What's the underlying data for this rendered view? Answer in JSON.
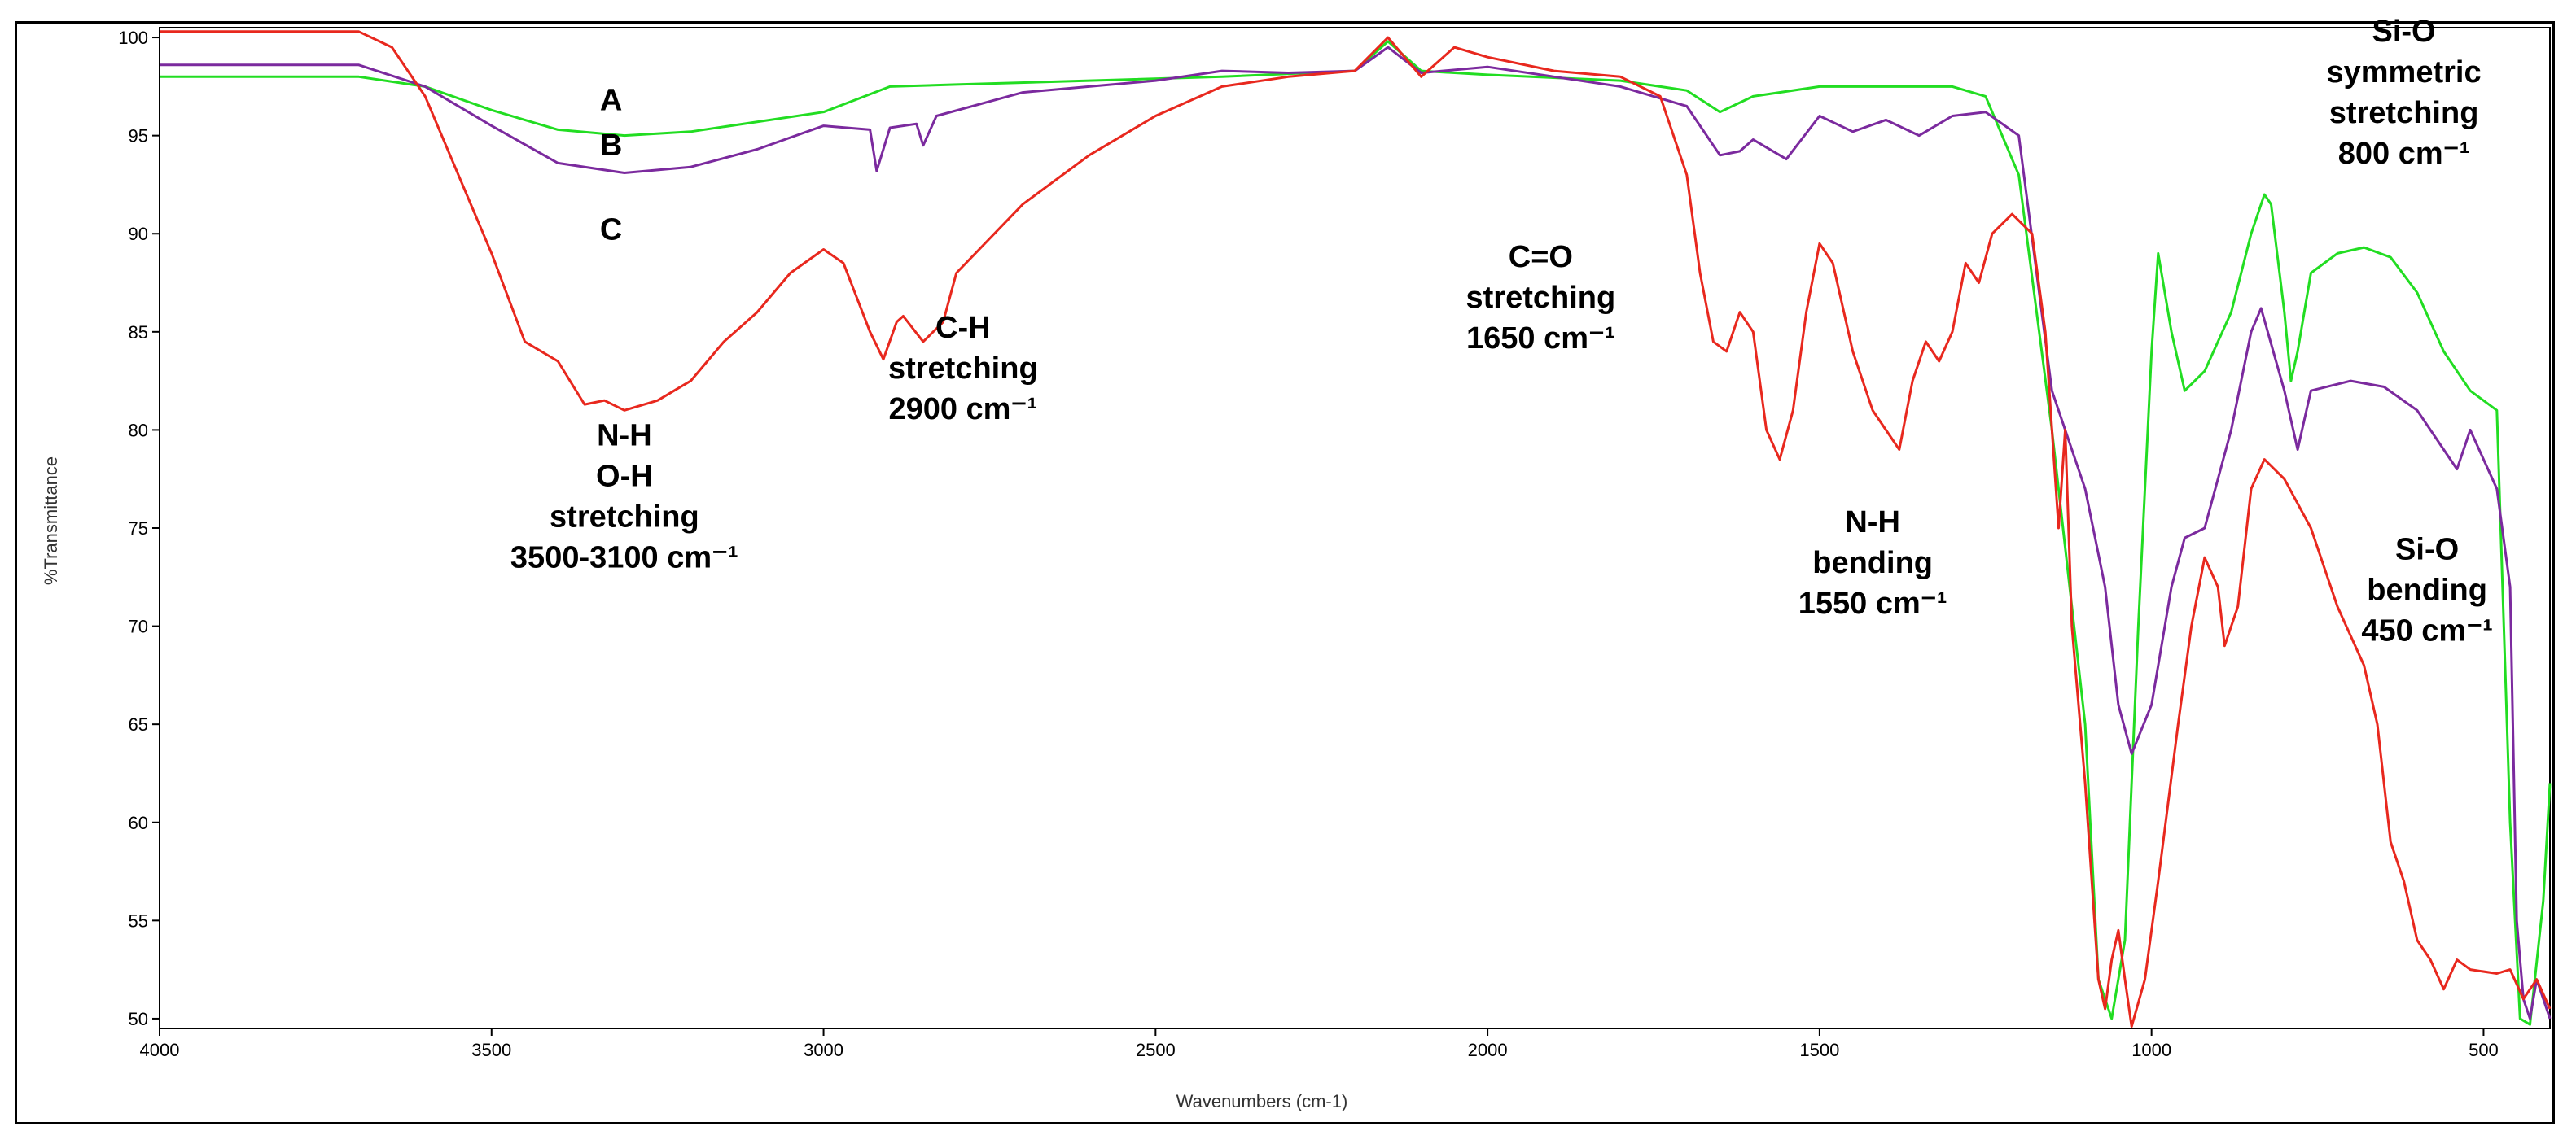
{
  "chart_data": {
    "type": "line",
    "title": "",
    "xlabel": "Wavenumbers (cm-1)",
    "ylabel": "%Transmittance",
    "xlim": [
      4000,
      400
    ],
    "ylim": [
      49.5,
      100.5
    ],
    "x_reversed": true,
    "xticks": [
      4000,
      3500,
      3000,
      2500,
      2000,
      1500,
      1000,
      500
    ],
    "yticks": [
      100,
      95,
      90,
      85,
      80,
      75,
      70,
      65,
      60,
      55,
      50
    ],
    "grid": false,
    "legend": "none",
    "series": [
      {
        "name": "A",
        "color": "#22dd22",
        "points": [
          [
            4000,
            98
          ],
          [
            3700,
            98
          ],
          [
            3600,
            97.5
          ],
          [
            3500,
            96.3
          ],
          [
            3400,
            95.3
          ],
          [
            3300,
            95
          ],
          [
            3200,
            95.2
          ],
          [
            3000,
            96.2
          ],
          [
            2900,
            97.5
          ],
          [
            2800,
            97.6
          ],
          [
            2600,
            97.8
          ],
          [
            2400,
            98
          ],
          [
            2200,
            98.3
          ],
          [
            2150,
            99.8
          ],
          [
            2100,
            98.3
          ],
          [
            2000,
            98.1
          ],
          [
            1800,
            97.8
          ],
          [
            1700,
            97.3
          ],
          [
            1650,
            96.2
          ],
          [
            1600,
            97
          ],
          [
            1500,
            97.5
          ],
          [
            1300,
            97.5
          ],
          [
            1250,
            97
          ],
          [
            1200,
            93
          ],
          [
            1150,
            80
          ],
          [
            1100,
            65
          ],
          [
            1080,
            52
          ],
          [
            1060,
            50
          ],
          [
            1040,
            54
          ],
          [
            1020,
            70
          ],
          [
            1000,
            84
          ],
          [
            990,
            89
          ],
          [
            970,
            85
          ],
          [
            950,
            82
          ],
          [
            920,
            83
          ],
          [
            880,
            86
          ],
          [
            850,
            90
          ],
          [
            830,
            92
          ],
          [
            820,
            91.5
          ],
          [
            800,
            86
          ],
          [
            790,
            82.5
          ],
          [
            780,
            84
          ],
          [
            760,
            88
          ],
          [
            720,
            89
          ],
          [
            680,
            89.3
          ],
          [
            640,
            88.8
          ],
          [
            600,
            87
          ],
          [
            560,
            84
          ],
          [
            520,
            82
          ],
          [
            480,
            81
          ],
          [
            460,
            60
          ],
          [
            445,
            50
          ],
          [
            430,
            49.7
          ],
          [
            410,
            56
          ],
          [
            400,
            62
          ]
        ]
      },
      {
        "name": "B",
        "color": "#7b2a9e",
        "points": [
          [
            4000,
            98.6
          ],
          [
            3700,
            98.6
          ],
          [
            3600,
            97.5
          ],
          [
            3500,
            95.5
          ],
          [
            3400,
            93.6
          ],
          [
            3300,
            93.1
          ],
          [
            3200,
            93.4
          ],
          [
            3100,
            94.3
          ],
          [
            3000,
            95.5
          ],
          [
            2930,
            95.3
          ],
          [
            2920,
            93.2
          ],
          [
            2900,
            95.4
          ],
          [
            2860,
            95.6
          ],
          [
            2850,
            94.5
          ],
          [
            2830,
            96
          ],
          [
            2700,
            97.2
          ],
          [
            2500,
            97.8
          ],
          [
            2400,
            98.3
          ],
          [
            2300,
            98.2
          ],
          [
            2200,
            98.3
          ],
          [
            2150,
            99.5
          ],
          [
            2100,
            98.2
          ],
          [
            2000,
            98.5
          ],
          [
            1900,
            98
          ],
          [
            1800,
            97.5
          ],
          [
            1700,
            96.5
          ],
          [
            1650,
            94
          ],
          [
            1620,
            94.2
          ],
          [
            1600,
            94.8
          ],
          [
            1550,
            93.8
          ],
          [
            1500,
            96
          ],
          [
            1450,
            95.2
          ],
          [
            1400,
            95.8
          ],
          [
            1350,
            95
          ],
          [
            1300,
            96
          ],
          [
            1250,
            96.2
          ],
          [
            1200,
            95
          ],
          [
            1150,
            82
          ],
          [
            1100,
            77
          ],
          [
            1070,
            72
          ],
          [
            1050,
            66
          ],
          [
            1030,
            63.5
          ],
          [
            1000,
            66
          ],
          [
            970,
            72
          ],
          [
            950,
            74.5
          ],
          [
            920,
            75
          ],
          [
            880,
            80
          ],
          [
            850,
            85
          ],
          [
            835,
            86.2
          ],
          [
            800,
            82
          ],
          [
            780,
            79
          ],
          [
            760,
            82
          ],
          [
            700,
            82.5
          ],
          [
            650,
            82.2
          ],
          [
            600,
            81
          ],
          [
            560,
            79
          ],
          [
            540,
            78
          ],
          [
            520,
            80
          ],
          [
            480,
            77
          ],
          [
            460,
            72
          ],
          [
            450,
            55
          ],
          [
            440,
            51
          ],
          [
            430,
            50
          ],
          [
            420,
            52
          ],
          [
            400,
            50
          ]
        ]
      },
      {
        "name": "C",
        "color": "#e8281e",
        "points": [
          [
            4000,
            100.3
          ],
          [
            3700,
            100.3
          ],
          [
            3650,
            99.5
          ],
          [
            3600,
            97
          ],
          [
            3550,
            93
          ],
          [
            3500,
            89
          ],
          [
            3450,
            84.5
          ],
          [
            3400,
            83.5
          ],
          [
            3360,
            81.3
          ],
          [
            3330,
            81.5
          ],
          [
            3300,
            81
          ],
          [
            3250,
            81.5
          ],
          [
            3200,
            82.5
          ],
          [
            3150,
            84.5
          ],
          [
            3100,
            86
          ],
          [
            3050,
            88
          ],
          [
            3000,
            89.2
          ],
          [
            2970,
            88.5
          ],
          [
            2930,
            85
          ],
          [
            2910,
            83.6
          ],
          [
            2890,
            85.5
          ],
          [
            2880,
            85.8
          ],
          [
            2850,
            84.5
          ],
          [
            2820,
            85.5
          ],
          [
            2800,
            88
          ],
          [
            2700,
            91.5
          ],
          [
            2600,
            94
          ],
          [
            2500,
            96
          ],
          [
            2400,
            97.5
          ],
          [
            2300,
            98
          ],
          [
            2200,
            98.3
          ],
          [
            2150,
            100
          ],
          [
            2100,
            98
          ],
          [
            2050,
            99.5
          ],
          [
            2000,
            99
          ],
          [
            1900,
            98.3
          ],
          [
            1800,
            98
          ],
          [
            1740,
            97
          ],
          [
            1700,
            93
          ],
          [
            1680,
            88
          ],
          [
            1660,
            84.5
          ],
          [
            1640,
            84
          ],
          [
            1620,
            86
          ],
          [
            1600,
            85
          ],
          [
            1580,
            80
          ],
          [
            1560,
            78.5
          ],
          [
            1540,
            81
          ],
          [
            1520,
            86
          ],
          [
            1500,
            89.5
          ],
          [
            1480,
            88.5
          ],
          [
            1450,
            84
          ],
          [
            1420,
            81
          ],
          [
            1400,
            80
          ],
          [
            1380,
            79
          ],
          [
            1360,
            82.5
          ],
          [
            1340,
            84.5
          ],
          [
            1320,
            83.5
          ],
          [
            1300,
            85
          ],
          [
            1280,
            88.5
          ],
          [
            1260,
            87.5
          ],
          [
            1240,
            90
          ],
          [
            1210,
            91
          ],
          [
            1180,
            90
          ],
          [
            1160,
            85
          ],
          [
            1140,
            75
          ],
          [
            1130,
            80
          ],
          [
            1120,
            70
          ],
          [
            1100,
            62
          ],
          [
            1080,
            52
          ],
          [
            1070,
            50.5
          ],
          [
            1060,
            53
          ],
          [
            1050,
            54.5
          ],
          [
            1040,
            52
          ],
          [
            1030,
            49.6
          ],
          [
            1010,
            52
          ],
          [
            990,
            57
          ],
          [
            960,
            65
          ],
          [
            940,
            70
          ],
          [
            920,
            73.5
          ],
          [
            900,
            72
          ],
          [
            890,
            69
          ],
          [
            870,
            71
          ],
          [
            850,
            77
          ],
          [
            830,
            78.5
          ],
          [
            800,
            77.5
          ],
          [
            760,
            75
          ],
          [
            720,
            71
          ],
          [
            680,
            68
          ],
          [
            660,
            65
          ],
          [
            640,
            59
          ],
          [
            620,
            57
          ],
          [
            600,
            54
          ],
          [
            580,
            53
          ],
          [
            560,
            51.5
          ],
          [
            540,
            53
          ],
          [
            520,
            52.5
          ],
          [
            480,
            52.3
          ],
          [
            460,
            52.5
          ],
          [
            440,
            51
          ],
          [
            420,
            52
          ],
          [
            400,
            50.5
          ]
        ]
      }
    ],
    "annotations": [
      {
        "text": [
          "A"
        ],
        "x": 3320,
        "y": 96.3
      },
      {
        "text": [
          "B"
        ],
        "x": 3320,
        "y": 94.0
      },
      {
        "text": [
          "C"
        ],
        "x": 3320,
        "y": 89.7
      },
      {
        "text": [
          "N-H",
          "O-H",
          "stretching",
          "3500-3100 cm⁻¹"
        ],
        "x": 3300,
        "y": 79.2
      },
      {
        "text": [
          "C-H",
          "stretching",
          "2900 cm⁻¹"
        ],
        "x": 2790,
        "y": 84.7
      },
      {
        "text": [
          "C=O",
          "stretching",
          "1650 cm⁻¹"
        ],
        "x": 1920,
        "y": 88.3
      },
      {
        "text": [
          "N-H",
          "bending",
          "1550 cm⁻¹"
        ],
        "x": 1420,
        "y": 74.8
      },
      {
        "text": [
          "Si-O",
          "symmetric",
          "stretching",
          "800 cm⁻¹"
        ],
        "x": 620,
        "y": 99.8
      },
      {
        "text": [
          "Si-O",
          "bending",
          "450 cm⁻¹"
        ],
        "x": 585,
        "y": 73.4
      }
    ]
  }
}
